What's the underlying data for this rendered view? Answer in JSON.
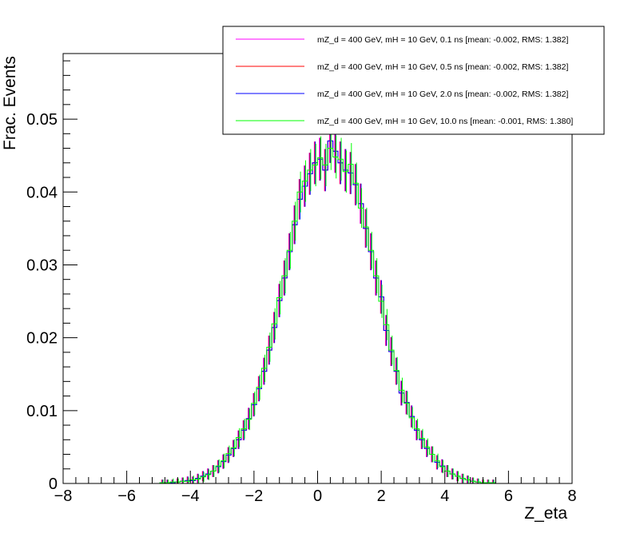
{
  "chart_data": {
    "type": "line",
    "step": true,
    "title": "",
    "xlabel": "Z_eta",
    "ylabel": "Frac. Events",
    "xlim": [
      -8,
      8
    ],
    "ylim": [
      0,
      0.059
    ],
    "x_ticks": [
      "−8",
      "−6",
      "−4",
      "−2",
      "0",
      "2",
      "4",
      "6",
      "8"
    ],
    "x_tick_values": [
      -8,
      -6,
      -4,
      -2,
      0,
      2,
      4,
      6,
      8
    ],
    "y_ticks": [
      "0",
      "0.01",
      "0.02",
      "0.03",
      "0.04",
      "0.05"
    ],
    "y_tick_values": [
      0,
      0.01,
      0.02,
      0.03,
      0.04,
      0.05
    ],
    "grid": false,
    "legend_position": "top-right",
    "bins": 100,
    "bin_width": 0.16,
    "series": [
      {
        "name": "mZ_d = 400 GeV, mH = 10 GeV, 0.1 ns [mean: -0.002, RMS: 1.382]",
        "color": "#ff00ff",
        "values": [
          0,
          0,
          0,
          0,
          0,
          0,
          0,
          0,
          0,
          0,
          0,
          0,
          0,
          0,
          0,
          0,
          0,
          0,
          0,
          0.0001,
          0.0001,
          0.0001,
          0.0002,
          0.0003,
          0.0004,
          0.0004,
          0.0007,
          0.001,
          0.0013,
          0.0017,
          0.0023,
          0.003,
          0.0039,
          0.0048,
          0.006,
          0.0073,
          0.0089,
          0.0108,
          0.013,
          0.0154,
          0.0183,
          0.0214,
          0.0251,
          0.0282,
          0.0318,
          0.0355,
          0.039,
          0.0408,
          0.0425,
          0.044,
          0.0445,
          0.043,
          0.047,
          0.0456,
          0.044,
          0.043,
          0.0426,
          0.041,
          0.0384,
          0.035,
          0.0318,
          0.0282,
          0.0256,
          0.021,
          0.0181,
          0.0154,
          0.0124,
          0.0111,
          0.0092,
          0.0073,
          0.006,
          0.0048,
          0.004,
          0.0029,
          0.0024,
          0.0017,
          0.0013,
          0.001,
          0.0007,
          0.0005,
          0.0003,
          0.0002,
          0.0001,
          0.0001,
          0.0001,
          0,
          0,
          0,
          0,
          0,
          0,
          0,
          0,
          0,
          0,
          0,
          0,
          0,
          0,
          0
        ]
      },
      {
        "name": "mZ_d = 400 GeV, mH = 10 GeV, 0.5 ns [mean: -0.002, RMS: 1.382]",
        "color": "#ff0000",
        "values": [
          0,
          0,
          0,
          0,
          0,
          0,
          0,
          0,
          0,
          0,
          0,
          0,
          0,
          0,
          0,
          0,
          0,
          0,
          0,
          0.0001,
          0.0001,
          0.0001,
          0.0002,
          0.0003,
          0.0004,
          0.0004,
          0.0007,
          0.001,
          0.0013,
          0.0017,
          0.0023,
          0.003,
          0.0039,
          0.0048,
          0.006,
          0.0073,
          0.0089,
          0.0108,
          0.013,
          0.0154,
          0.0183,
          0.0214,
          0.0251,
          0.0282,
          0.0318,
          0.0355,
          0.039,
          0.0408,
          0.0425,
          0.044,
          0.0445,
          0.043,
          0.047,
          0.0456,
          0.044,
          0.043,
          0.0426,
          0.041,
          0.0384,
          0.035,
          0.0318,
          0.0282,
          0.0256,
          0.021,
          0.0181,
          0.0154,
          0.0124,
          0.0111,
          0.0092,
          0.0073,
          0.006,
          0.0048,
          0.004,
          0.0029,
          0.0024,
          0.0017,
          0.0013,
          0.001,
          0.0007,
          0.0005,
          0.0003,
          0.0002,
          0.0001,
          0.0001,
          0.0001,
          0,
          0,
          0,
          0,
          0,
          0,
          0,
          0,
          0,
          0,
          0,
          0,
          0,
          0,
          0
        ]
      },
      {
        "name": "mZ_d = 400 GeV, mH = 10 GeV, 2.0 ns [mean: -0.002, RMS: 1.382]",
        "color": "#0000ff",
        "values": [
          0,
          0,
          0,
          0,
          0,
          0,
          0,
          0,
          0,
          0,
          0,
          0,
          0,
          0,
          0,
          0,
          0,
          0,
          0,
          0.0001,
          0.0001,
          0.0001,
          0.0002,
          0.0003,
          0.0004,
          0.0004,
          0.0007,
          0.001,
          0.0013,
          0.0017,
          0.0023,
          0.003,
          0.0039,
          0.0048,
          0.006,
          0.0073,
          0.0089,
          0.0108,
          0.013,
          0.0154,
          0.0183,
          0.0214,
          0.0251,
          0.0282,
          0.0318,
          0.0355,
          0.039,
          0.0408,
          0.0425,
          0.044,
          0.0445,
          0.043,
          0.047,
          0.0456,
          0.044,
          0.043,
          0.0426,
          0.041,
          0.0384,
          0.035,
          0.0318,
          0.0282,
          0.0256,
          0.021,
          0.0181,
          0.0154,
          0.0124,
          0.0111,
          0.0092,
          0.0073,
          0.006,
          0.0048,
          0.004,
          0.0029,
          0.0024,
          0.0017,
          0.0013,
          0.001,
          0.0007,
          0.0005,
          0.0003,
          0.0002,
          0.0001,
          0.0001,
          0.0001,
          0,
          0,
          0,
          0,
          0,
          0,
          0,
          0,
          0,
          0,
          0,
          0,
          0,
          0,
          0
        ]
      },
      {
        "name": "mZ_d = 400 GeV, mH = 10 GeV, 10.0 ns [mean: -0.001, RMS: 1.380]",
        "color": "#00ff00",
        "values": [
          0,
          0,
          0,
          0,
          0,
          0,
          0,
          0,
          0,
          0,
          0,
          0,
          0,
          0,
          0,
          0,
          0,
          0,
          0,
          0.0001,
          0.0001,
          0.0002,
          0.0002,
          0.0003,
          0.0003,
          0.0005,
          0.0006,
          0.0009,
          0.0012,
          0.0017,
          0.0024,
          0.0031,
          0.0041,
          0.0049,
          0.0063,
          0.0075,
          0.0088,
          0.011,
          0.0132,
          0.0158,
          0.0187,
          0.0219,
          0.0255,
          0.0285,
          0.032,
          0.036,
          0.04,
          0.0415,
          0.043,
          0.0437,
          0.0447,
          0.0437,
          0.046,
          0.0448,
          0.0445,
          0.0428,
          0.0438,
          0.0412,
          0.0378,
          0.0352,
          0.032,
          0.0285,
          0.025,
          0.0218,
          0.0183,
          0.0155,
          0.0128,
          0.011,
          0.009,
          0.0075,
          0.0062,
          0.005,
          0.004,
          0.0031,
          0.0023,
          0.0017,
          0.0013,
          0.001,
          0.0007,
          0.0005,
          0.0003,
          0.0002,
          0.0001,
          0.0001,
          0.0001,
          0,
          0,
          0,
          0,
          0,
          0,
          0,
          0,
          0,
          0,
          0,
          0,
          0,
          0,
          0
        ]
      }
    ]
  }
}
